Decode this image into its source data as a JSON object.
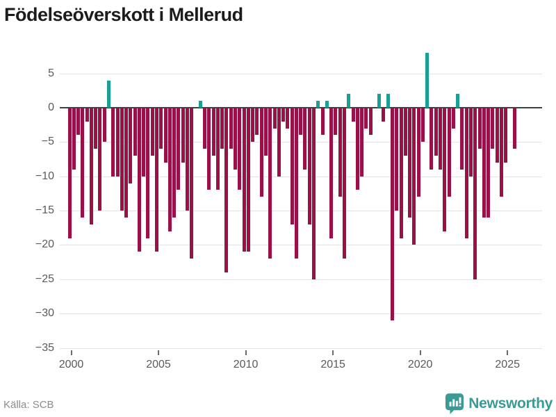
{
  "title": "Födelseöverskott i Mellerud",
  "source": "Källa: SCB",
  "brand": {
    "name": "Newsworthy",
    "logo_icon": "newsworthy-speech-bubble-barchart-icon"
  },
  "colors": {
    "negative_bar": "#9b1046",
    "positive_bar": "#1a9e96",
    "grid": "#e3e3e3",
    "zero_line": "#3f3f3f",
    "axis_text": "#5a5a5a",
    "title_text": "#1c1c1c",
    "source_text": "#8c8c8c",
    "brand_teal": "#3a9a95"
  },
  "chart_data": {
    "type": "bar",
    "title": "Födelseöverskott i Mellerud",
    "xlabel": "",
    "ylabel": "",
    "frequency": "quarterly",
    "start": "2000 Q1",
    "end": "2025 Q3",
    "ylim": [
      -35,
      8
    ],
    "grid": "horizontal",
    "y_tick_values": [
      5,
      0,
      -5,
      -10,
      -15,
      -20,
      -25,
      -30,
      -35
    ],
    "y_tick_labels": [
      "5",
      "0",
      "−5",
      "−10",
      "−15",
      "−20",
      "−25",
      "−30",
      "−35"
    ],
    "x_tick_labels": [
      "2000",
      "2005",
      "2010",
      "2015",
      "2020",
      "2025"
    ],
    "x_tick_years": [
      2000,
      2005,
      2010,
      2015,
      2020,
      2025
    ],
    "series": [
      {
        "year": 2000,
        "values": [
          -19,
          -9,
          -4,
          -16
        ]
      },
      {
        "year": 2001,
        "values": [
          -2,
          -17,
          -6,
          -15
        ]
      },
      {
        "year": 2002,
        "values": [
          -5,
          4,
          -10,
          -10
        ]
      },
      {
        "year": 2003,
        "values": [
          -15,
          -16,
          -11,
          -7
        ]
      },
      {
        "year": 2004,
        "values": [
          -21,
          -10,
          -19,
          -7
        ]
      },
      {
        "year": 2005,
        "values": [
          -21,
          -6,
          -8,
          -18
        ]
      },
      {
        "year": 2006,
        "values": [
          -16,
          -12,
          -8,
          -15
        ]
      },
      {
        "year": 2007,
        "values": [
          -22,
          0,
          1,
          -6
        ]
      },
      {
        "year": 2008,
        "values": [
          -12,
          -7,
          -12,
          -6
        ]
      },
      {
        "year": 2009,
        "values": [
          -24,
          -6,
          -9,
          -12
        ]
      },
      {
        "year": 2010,
        "values": [
          -21,
          -21,
          -5,
          -4
        ]
      },
      {
        "year": 2011,
        "values": [
          -13,
          -7,
          -22,
          -3
        ]
      },
      {
        "year": 2012,
        "values": [
          -10,
          -2,
          -3,
          -17
        ]
      },
      {
        "year": 2013,
        "values": [
          -22,
          -4,
          -9,
          -17
        ]
      },
      {
        "year": 2014,
        "values": [
          -25,
          1,
          -4,
          1
        ]
      },
      {
        "year": 2015,
        "values": [
          -19,
          -4,
          -13,
          -22
        ]
      },
      {
        "year": 2016,
        "values": [
          2,
          -2,
          -12,
          -10
        ]
      },
      {
        "year": 2017,
        "values": [
          -3,
          -4,
          0,
          2
        ]
      },
      {
        "year": 2018,
        "values": [
          -2,
          2,
          -31,
          -15
        ]
      },
      {
        "year": 2019,
        "values": [
          -19,
          -7,
          -16,
          -20
        ]
      },
      {
        "year": 2020,
        "values": [
          -13,
          -5,
          8,
          -9
        ]
      },
      {
        "year": 2021,
        "values": [
          -7,
          -9,
          -18,
          -13
        ]
      },
      {
        "year": 2022,
        "values": [
          -3,
          2,
          -9,
          -19
        ]
      },
      {
        "year": 2023,
        "values": [
          -10,
          -25,
          -6,
          -16
        ]
      },
      {
        "year": 2024,
        "values": [
          -16,
          -6,
          -8,
          -13
        ]
      },
      {
        "year": 2025,
        "values": [
          -8,
          0,
          -6
        ]
      }
    ]
  }
}
